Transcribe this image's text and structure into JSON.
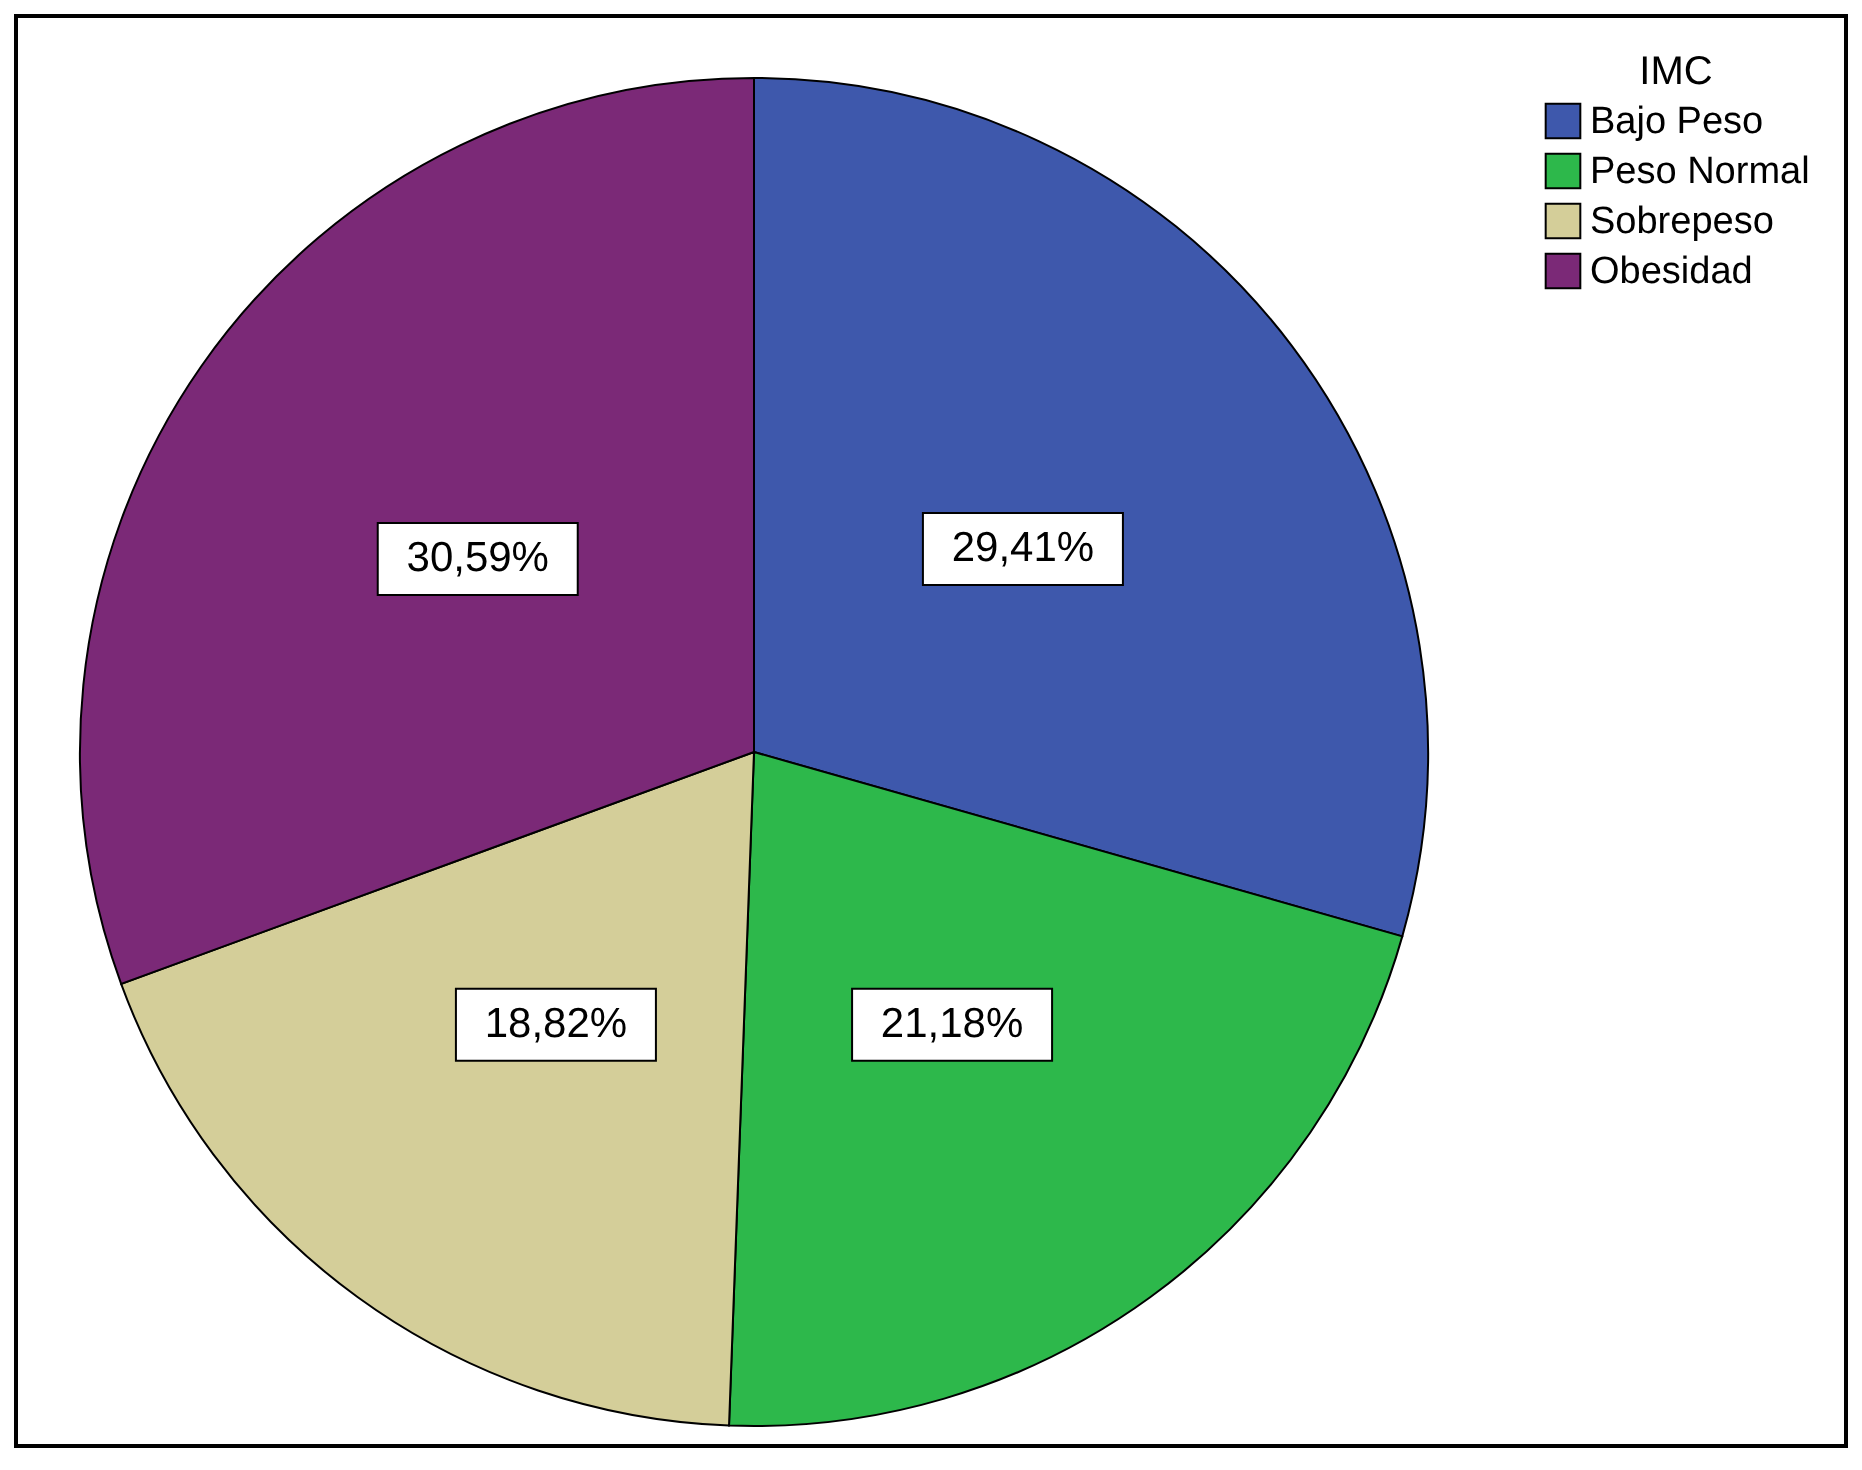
{
  "chart_data": {
    "type": "pie",
    "legend_title": "IMC",
    "categories": [
      "Bajo Peso",
      "Peso Normal",
      "Sobrepeso",
      "Obesidad"
    ],
    "values": [
      29.41,
      21.18,
      18.82,
      30.59
    ],
    "colors": [
      "#3e58ac",
      "#2db84b",
      "#d4ce99",
      "#7b2977"
    ],
    "value_labels": [
      "29,41%",
      "21,18%",
      "18,82%",
      "30,59%"
    ],
    "legend": "top right"
  }
}
